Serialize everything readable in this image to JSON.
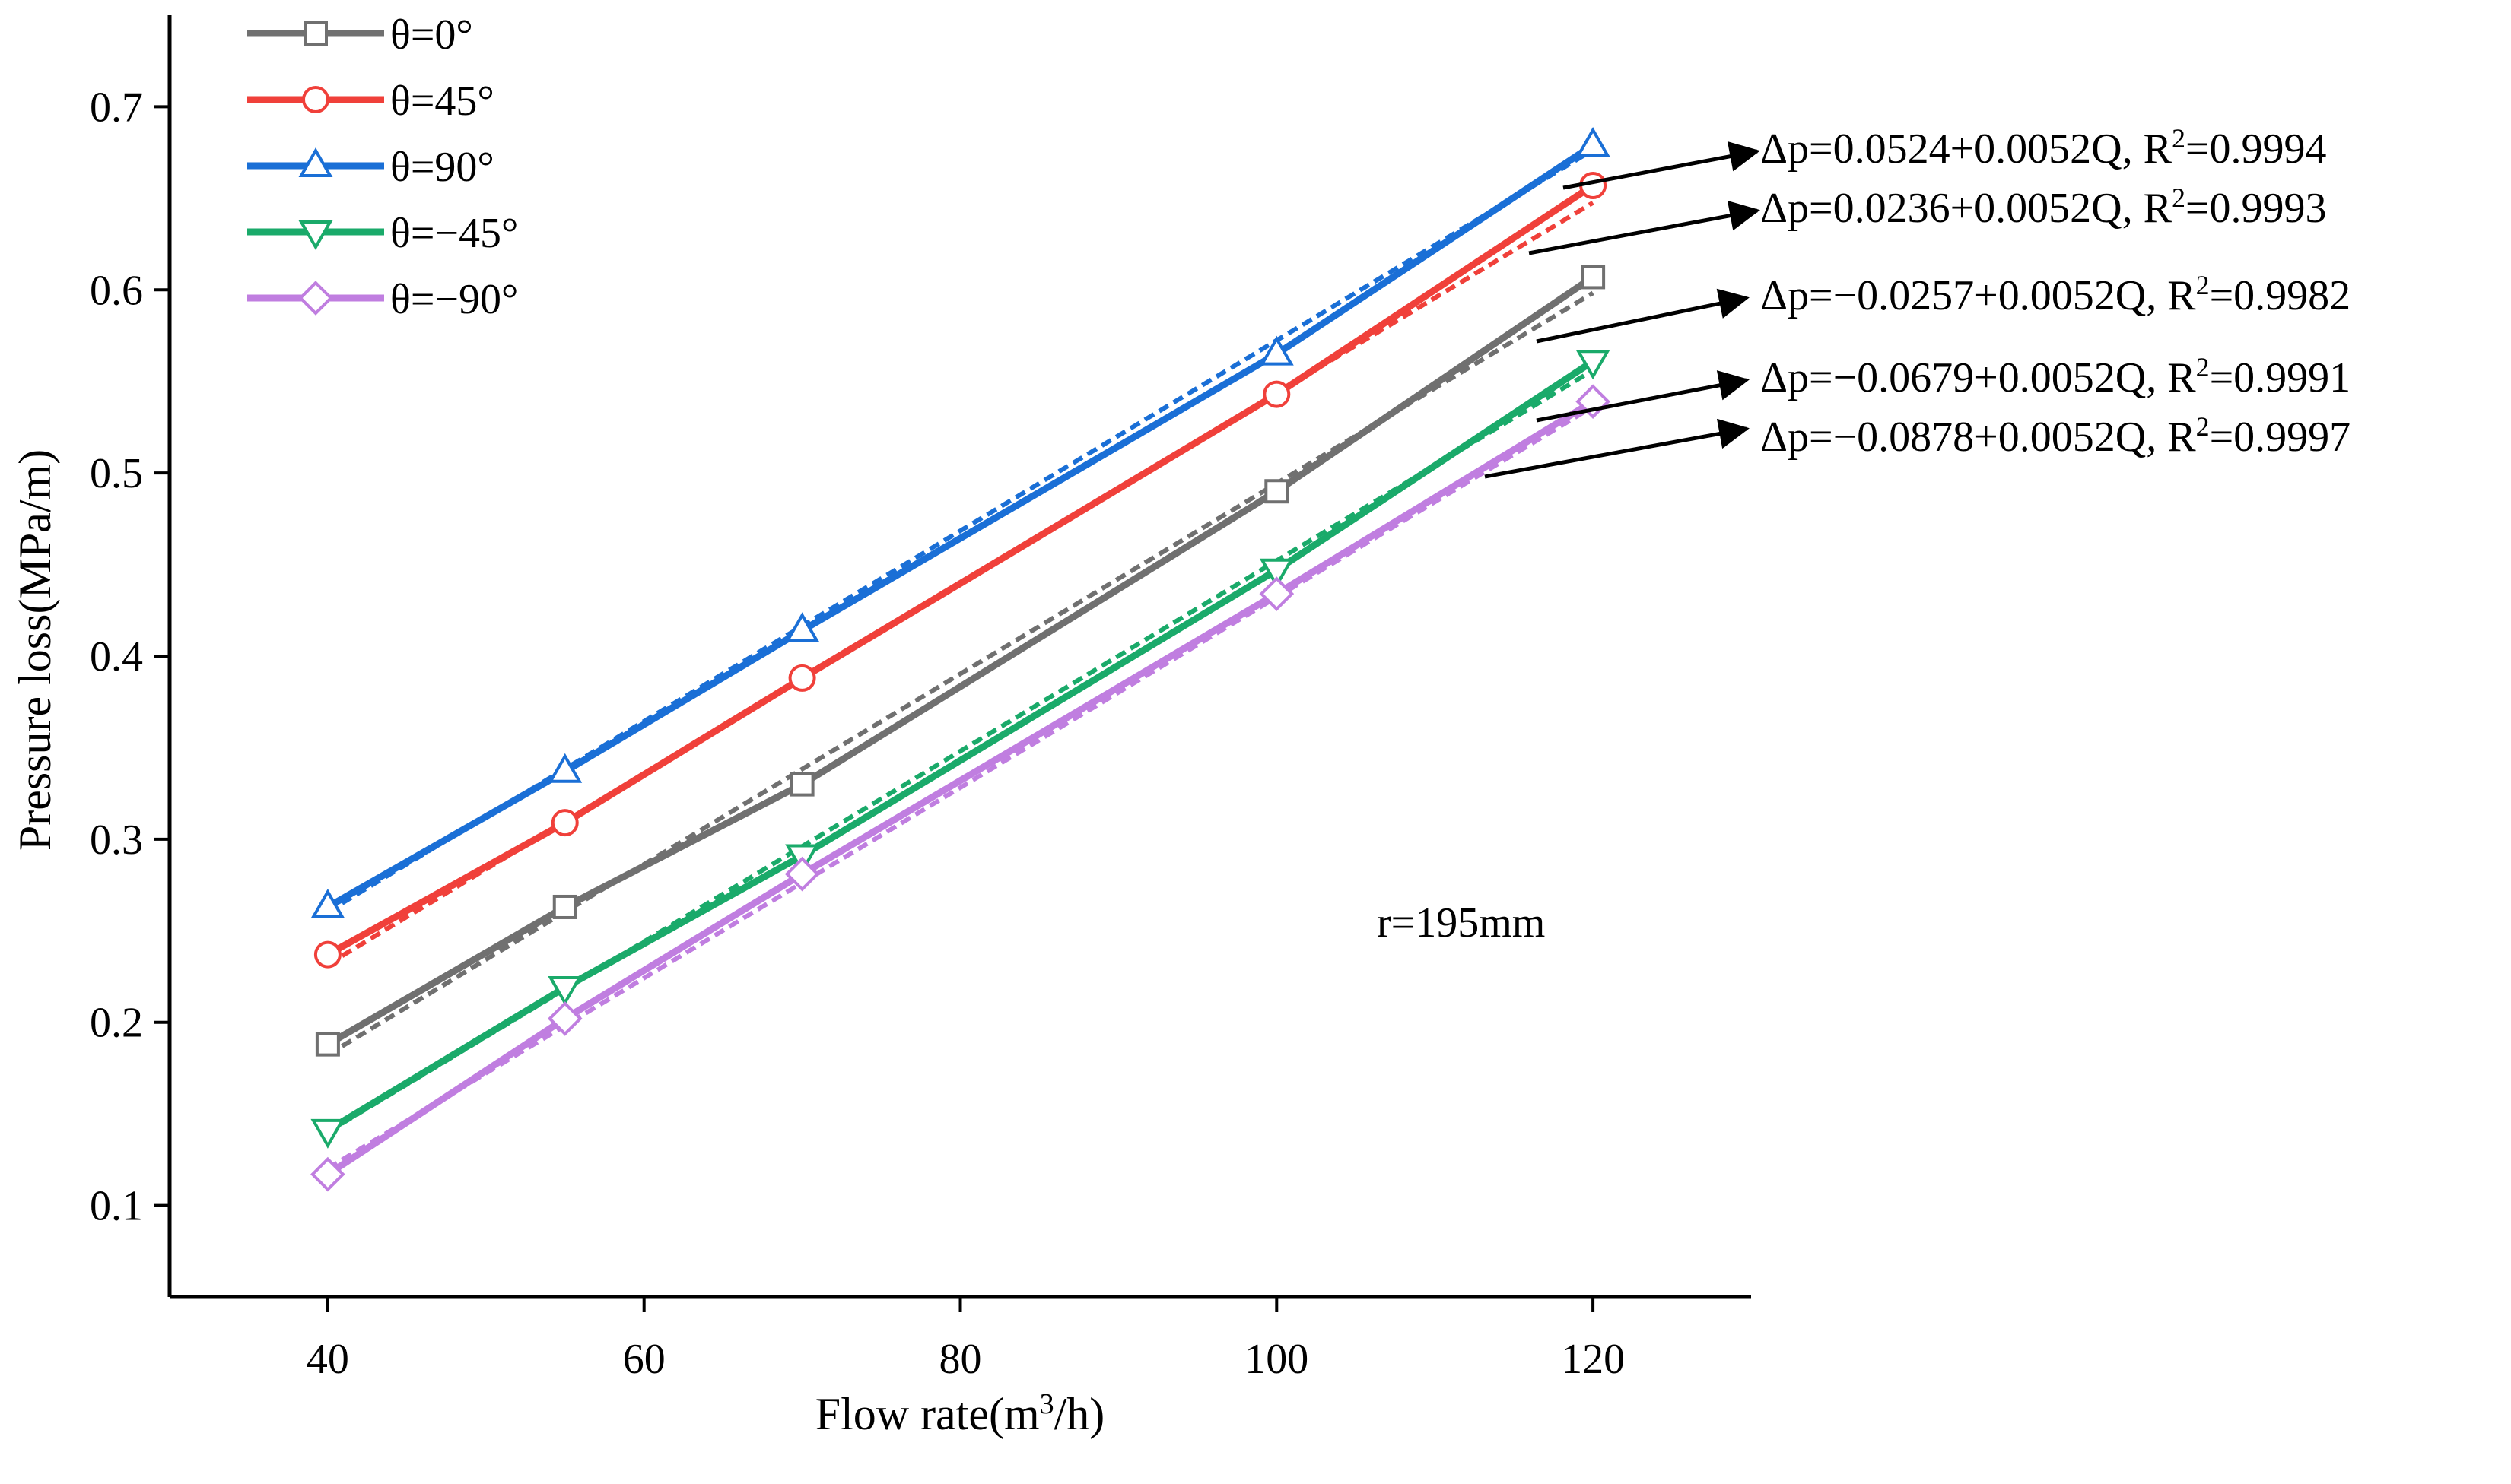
{
  "chart_data": {
    "type": "line",
    "title": "",
    "xlabel": "Flow rate(m³/h)",
    "xlabel_main": "Flow rate(m",
    "xlabel_sup": "3",
    "xlabel_tail": "/h)",
    "ylabel": "Pressure loss(MPa/m)",
    "x": [
      40,
      55,
      70,
      100,
      120
    ],
    "xlim": [
      30,
      130
    ],
    "ylim": [
      0.05,
      0.75
    ],
    "x_ticks": [
      40,
      60,
      80,
      100,
      120
    ],
    "x_tick_labels": [
      "40",
      "60",
      "80",
      "100",
      "120"
    ],
    "y_ticks": [
      0.1,
      0.2,
      0.3,
      0.4,
      0.5,
      0.6,
      0.7
    ],
    "y_tick_labels": [
      "0.1",
      "0.2",
      "0.3",
      "0.4",
      "0.5",
      "0.6",
      "0.7"
    ],
    "grid": false,
    "legend_position": "top-left",
    "series": [
      {
        "name": "θ=0°",
        "color": "#707070",
        "marker": "square",
        "values": [
          0.188,
          0.263,
          0.33,
          0.49,
          0.607
        ],
        "fit": {
          "intercept": -0.0257,
          "slope": 0.0052
        }
      },
      {
        "name": "θ=45°",
        "color": "#f0403a",
        "marker": "circle",
        "values": [
          0.237,
          0.309,
          0.388,
          0.543,
          0.657
        ],
        "fit": {
          "intercept": 0.0236,
          "slope": 0.0052
        }
      },
      {
        "name": "θ=90°",
        "color": "#1a6fd6",
        "marker": "triangle-up",
        "values": [
          0.263,
          0.337,
          0.414,
          0.565,
          0.679
        ],
        "fit": {
          "intercept": 0.0524,
          "slope": 0.0052
        }
      },
      {
        "name": "θ=−45°",
        "color": "#1aaa6a",
        "marker": "triangle-down",
        "values": [
          0.141,
          0.219,
          0.291,
          0.447,
          0.561
        ],
        "fit": {
          "intercept": -0.0679,
          "slope": 0.0052
        }
      },
      {
        "name": "θ=−90°",
        "color": "#c07ee0",
        "marker": "diamond",
        "values": [
          0.117,
          0.202,
          0.281,
          0.434,
          0.539
        ],
        "fit": {
          "intercept": -0.0878,
          "slope": 0.0052
        }
      }
    ],
    "annotations": [
      {
        "series": "θ=90°",
        "main": "Δp=0.0524+0.0052Q, R",
        "sup": "2",
        "tail": "=0.9994"
      },
      {
        "series": "θ=45°",
        "main": "Δp=0.0236+0.0052Q, R",
        "sup": "2",
        "tail": "=0.9993"
      },
      {
        "series": "θ=0°",
        "main": "Δp=−0.0257+0.0052Q, R",
        "sup": "2",
        "tail": "=0.9982"
      },
      {
        "series": "θ=−45°",
        "main": "Δp=−0.0679+0.0052Q, R",
        "sup": "2",
        "tail": "=0.9991"
      },
      {
        "series": "θ=−90°",
        "main": "Δp=−0.0878+0.0052Q, R",
        "sup": "2",
        "tail": "=0.9997"
      }
    ],
    "note": "r=195mm"
  }
}
